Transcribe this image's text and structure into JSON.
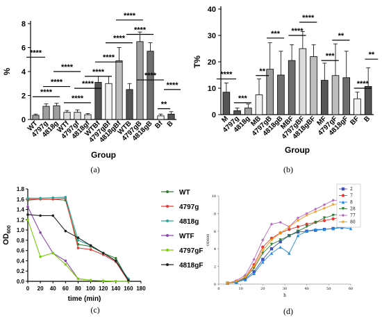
{
  "panel_labels": [
    "(a)",
    "(b)",
    "(c)",
    "(d)"
  ],
  "chart_data": [
    {
      "type": "bar",
      "id": "a",
      "xlabel": "Group",
      "ylabel": "%",
      "ylim": [
        0,
        8
      ],
      "yticks": [
        0,
        2,
        4,
        6,
        8
      ],
      "categories": [
        "WT",
        "4797g",
        "4818g",
        "WTf",
        "4797gf",
        "4818gf",
        "WTBf",
        "4797gBf",
        "4818gBf",
        "WTB",
        "4797gB",
        "4818gB",
        "Bf",
        "B"
      ],
      "values": [
        0.35,
        1.1,
        1.15,
        0.6,
        0.6,
        0.4,
        3.1,
        3.0,
        4.9,
        2.5,
        6.5,
        5.7,
        0.3,
        0.45
      ],
      "errors": [
        0.1,
        0.2,
        0.2,
        0.15,
        0.2,
        0.1,
        0.5,
        0.6,
        1.1,
        0.5,
        0.8,
        0.7,
        0.15,
        0.2
      ],
      "colors": [
        "#9e9e9e",
        "#9e9e9e",
        "#9e9e9e",
        "#dcdcdc",
        "#dcdcdc",
        "#dcdcdc",
        "#555555",
        "#f2f2f2",
        "#bdbdbd",
        "#555555",
        "#9e9e9e",
        "#6e6e6e",
        "#f2f2f2",
        "#555555"
      ],
      "significance": [
        {
          "label": "****",
          "y": 5.2,
          "x1": -0.6,
          "x2": 0.6
        },
        {
          "label": "****",
          "y": 1.9,
          "x1": 0,
          "x2": 2
        },
        {
          "label": "****",
          "y": 2.75,
          "x1": 1,
          "x2": 3
        },
        {
          "label": "****",
          "y": 4.0,
          "x1": 2,
          "x2": 4
        },
        {
          "label": "****",
          "y": 1.4,
          "x1": 3,
          "x2": 5
        },
        {
          "label": "****",
          "y": 2.6,
          "x1": 4,
          "x2": 6
        },
        {
          "label": "****",
          "y": 3.6,
          "x1": 5,
          "x2": 7
        },
        {
          "label": "****",
          "y": 4.8,
          "x1": 6,
          "x2": 8
        },
        {
          "label": "****",
          "y": 6.4,
          "x1": 7,
          "x2": 9
        },
        {
          "label": "****",
          "y": 8.3,
          "x1": 8,
          "x2": 10
        },
        {
          "label": "****",
          "y": 7.1,
          "x1": 9,
          "x2": 11
        },
        {
          "label": "****",
          "y": 3.3,
          "x1": 10,
          "x2": 12
        },
        {
          "label": "**",
          "y": 0.9,
          "x1": 12,
          "x2": 12.6
        },
        {
          "label": "****",
          "y": 2.5,
          "x1": 12.6,
          "x2": 13.6
        }
      ]
    },
    {
      "type": "bar",
      "id": "b",
      "xlabel": "Group",
      "ylabel": "T%",
      "ylim": [
        0,
        40
      ],
      "yticks": [
        0,
        10,
        20,
        30,
        40
      ],
      "categories": [
        "M",
        "4797g",
        "4818g",
        "MB",
        "4797gB",
        "4818gB",
        "MBF",
        "4797gBF",
        "4818gBF",
        "MF",
        "4797gF",
        "4818gF",
        "BF",
        "B"
      ],
      "values": [
        8.5,
        1.5,
        2.5,
        7.5,
        17.2,
        15.0,
        20.5,
        25.0,
        22.0,
        13.0,
        14.8,
        14.0,
        6.0,
        10.7
      ],
      "errors": [
        3.5,
        1.0,
        1.5,
        6.0,
        10.0,
        9.0,
        6.0,
        6.5,
        4.5,
        6.5,
        12.0,
        10.0,
        2.5,
        7.0
      ],
      "colors": [
        "#555555",
        "#555555",
        "#9e9e9e",
        "#f2f2f2",
        "#9e9e9e",
        "#6e6e6e",
        "#6e6e6e",
        "#dcdcdc",
        "#bdbdbd",
        "#555555",
        "#bdbdbd",
        "#6e6e6e",
        "#f2f2f2",
        "#555555"
      ],
      "significance": [
        {
          "label": "****",
          "y": 13.5,
          "x1": -0.6,
          "x2": 0.6
        },
        {
          "label": "***",
          "y": 4.5,
          "x1": 1,
          "x2": 2
        },
        {
          "label": "**",
          "y": 14.8,
          "x1": 3,
          "x2": 3.6
        },
        {
          "label": "***",
          "y": 29.0,
          "x1": 4,
          "x2": 5
        },
        {
          "label": "****",
          "y": 30.0,
          "x1": 6,
          "x2": 7
        },
        {
          "label": "****",
          "y": 35.0,
          "x1": 7,
          "x2": 8
        },
        {
          "label": "***",
          "y": 20.5,
          "x1": 9,
          "x2": 10
        },
        {
          "label": "**",
          "y": 28.2,
          "x1": 10,
          "x2": 11
        },
        {
          "label": "****",
          "y": 10.0,
          "x1": 12,
          "x2": 13
        },
        {
          "label": "**",
          "y": 21.0,
          "x1": 13,
          "x2": 13.6
        }
      ]
    },
    {
      "type": "line",
      "id": "c",
      "xlabel": "time (min)",
      "ylabel": "OD600",
      "xlim": [
        0,
        180
      ],
      "ylim": [
        0,
        1.8
      ],
      "xticks": [
        0,
        20,
        40,
        60,
        80,
        100,
        120,
        140,
        160,
        180
      ],
      "yticks": [
        0.0,
        0.2,
        0.4,
        0.6,
        0.8,
        1.0,
        1.2,
        1.4,
        1.6,
        1.8
      ],
      "x": [
        0,
        20,
        40,
        60,
        80,
        100,
        120,
        140,
        160
      ],
      "series": [
        {
          "name": "WT",
          "color": "#2e7d32",
          "marker": "dot",
          "values": [
            1.58,
            1.6,
            1.6,
            1.58,
            0.72,
            0.68,
            0.55,
            0.45,
            0.02
          ]
        },
        {
          "name": "4797g",
          "color": "#e53935",
          "marker": "dot",
          "values": [
            1.6,
            1.6,
            1.6,
            1.62,
            0.65,
            0.62,
            0.52,
            0.38,
            0.0
          ]
        },
        {
          "name": "4818g",
          "color": "#26a69a",
          "marker": "dot",
          "values": [
            1.62,
            1.62,
            1.63,
            1.64,
            0.8,
            0.7,
            0.55,
            0.4,
            0.05
          ]
        },
        {
          "name": "WTF",
          "color": "#8e44ad",
          "marker": "dot",
          "values": [
            1.45,
            0.95,
            0.55,
            0.4,
            0.05,
            0.02,
            0.01,
            0.0,
            0.0
          ]
        },
        {
          "name": "4797gF",
          "color": "#76d000",
          "marker": "dot",
          "values": [
            1.2,
            0.48,
            0.55,
            0.33,
            0.05,
            0.02,
            0.01,
            0.0,
            0.0
          ]
        },
        {
          "name": "4818gF",
          "color": "#212121",
          "marker": "dot",
          "values": [
            1.3,
            1.28,
            1.28,
            0.98,
            0.85,
            0.7,
            0.55,
            0.4,
            0.02
          ]
        }
      ]
    },
    {
      "type": "line",
      "id": "d",
      "xlabel": "h",
      "ylabel": "OD600",
      "xlim": [
        0,
        60
      ],
      "ylim": [
        0,
        10
      ],
      "xticks": [
        0,
        10,
        20,
        30,
        40,
        50,
        60
      ],
      "yticks": [
        0,
        2,
        4,
        6,
        8,
        10
      ],
      "x": [
        4,
        8,
        12,
        16,
        20,
        24,
        28,
        32,
        36,
        40,
        44,
        48,
        52,
        56,
        60
      ],
      "series": [
        {
          "name": "2",
          "color": "#3f51b5",
          "marker": "square",
          "values": [
            0.1,
            0.2,
            0.6,
            1.4,
            2.8,
            4.0,
            4.8,
            5.5,
            5.9,
            6.0,
            6.1,
            6.2,
            6.3,
            6.5,
            6.6
          ]
        },
        {
          "name": "7",
          "color": "#e53935",
          "marker": "dot",
          "values": [
            0.1,
            0.3,
            0.8,
            2.2,
            4.2,
            5.2,
            5.8,
            6.2,
            6.5,
            6.8,
            7.0,
            7.2,
            7.4,
            7.6,
            7.7
          ]
        },
        {
          "name": "8",
          "color": "#1e88e5",
          "marker": "triangle",
          "values": [
            0.1,
            0.2,
            0.5,
            1.2,
            2.5,
            3.5,
            4.2,
            3.5,
            5.5,
            6.0,
            6.2,
            6.2,
            6.3,
            6.4,
            6.3
          ]
        },
        {
          "name": "28",
          "color": "#2e7d32",
          "marker": "triangle-down",
          "values": [
            0.1,
            0.3,
            0.7,
            1.8,
            3.5,
            4.5,
            5.0,
            5.5,
            6.0,
            6.5,
            7.0,
            7.5,
            7.8,
            8.0,
            8.2
          ]
        },
        {
          "name": "77",
          "color": "#ba68c8",
          "marker": "diamond",
          "values": [
            0.1,
            0.4,
            1.0,
            2.8,
            5.0,
            6.8,
            7.0,
            6.5,
            7.5,
            8.0,
            8.5,
            9.0,
            9.5,
            9.5,
            9.5
          ]
        },
        {
          "name": "80",
          "color": "#f39c12",
          "marker": "star",
          "values": [
            0.1,
            0.3,
            0.8,
            2.0,
            3.8,
            5.0,
            5.8,
            6.5,
            7.2,
            7.8,
            8.2,
            8.6,
            9.0,
            9.2,
            9.0
          ]
        }
      ]
    }
  ]
}
